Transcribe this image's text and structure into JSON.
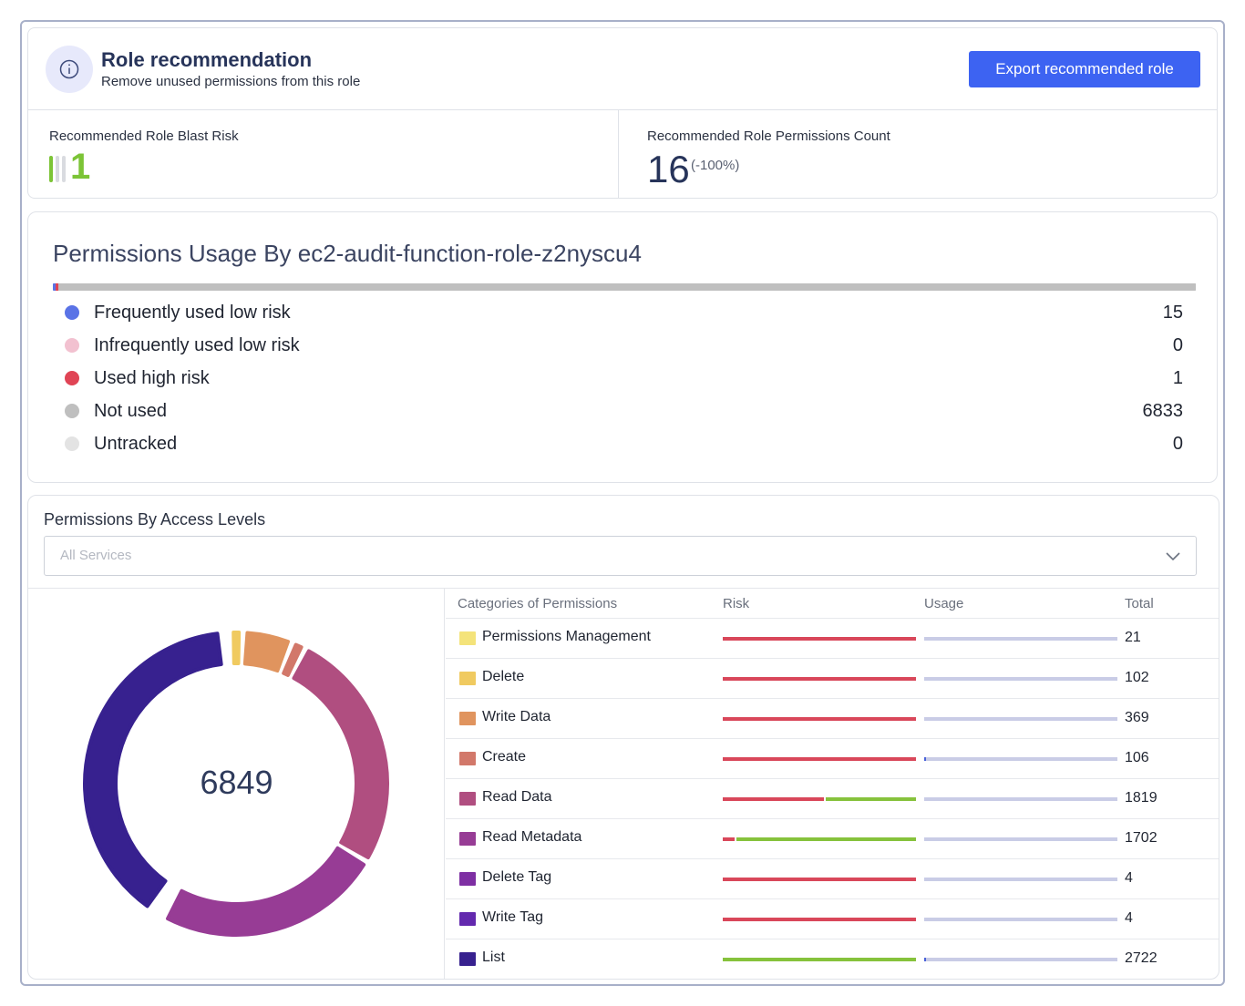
{
  "header": {
    "title": "Role recommendation",
    "subtitle": "Remove unused permissions from this role",
    "icon": "info-icon",
    "export_label": "Export recommended role",
    "accent": "#3d63f2"
  },
  "metrics": {
    "blast_risk_label": "Recommended Role Blast Risk",
    "blast_risk_value": "1",
    "blast_risk_color": "#7cc436",
    "blast_risk_level": 1,
    "blast_risk_levels": 5,
    "permissions_count_label": "Recommended Role Permissions Count",
    "permissions_count_value": "16",
    "permissions_count_delta": "(-100%)"
  },
  "usage": {
    "title": "Permissions Usage By ec2-audit-function-role-z2nyscu4",
    "rows": [
      {
        "label": "Frequently used low risk",
        "count": "15",
        "value": 15,
        "color": "#5a73e6"
      },
      {
        "label": "Infrequently used low risk",
        "count": "0",
        "value": 0,
        "color": "#f2c1d0"
      },
      {
        "label": "Used high risk",
        "count": "1",
        "value": 1,
        "color": "#e04455"
      },
      {
        "label": "Not used",
        "count": "6833",
        "value": 6833,
        "color": "#bfbfbf"
      },
      {
        "label": "Untracked",
        "count": "0",
        "value": 0,
        "color": "#e3e3e3"
      }
    ]
  },
  "access": {
    "title": "Permissions By Access Levels",
    "select_placeholder": "All Services",
    "donut_total": "6849",
    "columns": {
      "category": "Categories of Permissions",
      "risk": "Risk",
      "usage": "Usage",
      "total": "Total"
    },
    "rows": [
      {
        "label": "Permissions Management",
        "total": "21",
        "value": 21,
        "color": "#f4e37a",
        "risk_high": 1.0,
        "usage_used": 0.0
      },
      {
        "label": "Delete",
        "total": "102",
        "value": 102,
        "color": "#f0ca60",
        "risk_high": 1.0,
        "usage_used": 0.0
      },
      {
        "label": "Write Data",
        "total": "369",
        "value": 369,
        "color": "#e0945e",
        "risk_high": 1.0,
        "usage_used": 0.0
      },
      {
        "label": "Create",
        "total": "106",
        "value": 106,
        "color": "#d2786a",
        "risk_high": 1.0,
        "usage_used": 0.01
      },
      {
        "label": "Read Data",
        "total": "1819",
        "value": 1819,
        "color": "#b04e80",
        "risk_high": 0.53,
        "usage_used": 0.0
      },
      {
        "label": "Read Metadata",
        "total": "1702",
        "value": 1702,
        "color": "#973c95",
        "risk_high": 0.06,
        "usage_used": 0.0
      },
      {
        "label": "Delete Tag",
        "total": "4",
        "value": 4,
        "color": "#7e2fa3",
        "risk_high": 1.0,
        "usage_used": 0.0
      },
      {
        "label": "Write Tag",
        "total": "4",
        "value": 4,
        "color": "#6329ae",
        "risk_high": 1.0,
        "usage_used": 0.0
      },
      {
        "label": "List",
        "total": "2722",
        "value": 2722,
        "color": "#37218f",
        "risk_high": 0.0,
        "usage_used": 0.01
      }
    ],
    "risk_colors": {
      "high": "#d9475a",
      "low": "#86c23c"
    },
    "usage_colors": {
      "used": "#4a63d9",
      "unused": "#c9cce6"
    }
  }
}
